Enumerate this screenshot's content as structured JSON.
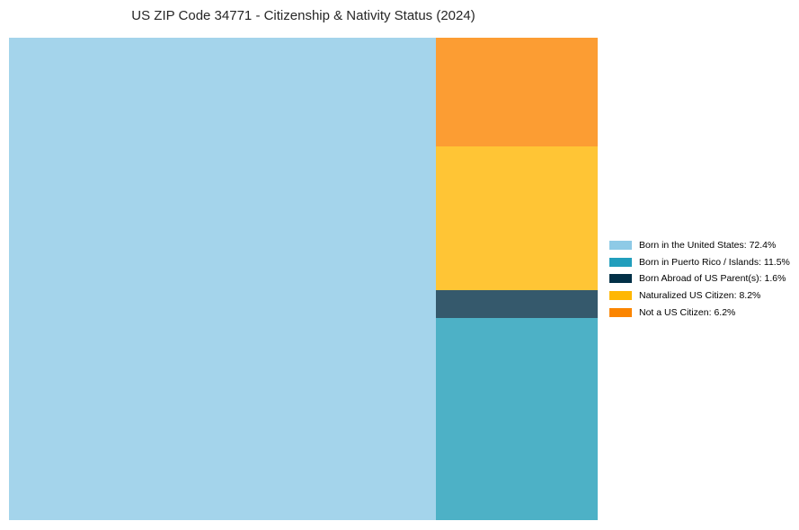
{
  "page": {
    "background": "#ffffff"
  },
  "chart_data": {
    "type": "treemap",
    "title": "US ZIP Code 34771 - Citizenship & Nativity Status (2024)",
    "items": [
      {
        "label": "Born in the United States",
        "value": 72.4,
        "color": "#8ecae6",
        "fill": "#a4d4eb"
      },
      {
        "label": "Born in Puerto Rico / Islands",
        "value": 11.5,
        "color": "#219ebc",
        "fill": "#4db1c6"
      },
      {
        "label": "Born Abroad of US Parent(s)",
        "value": 1.6,
        "color": "#023047",
        "fill": "#35596c"
      },
      {
        "label": "Naturalized US Citizen",
        "value": 8.2,
        "color": "#ffb703",
        "fill": "#ffc535"
      },
      {
        "label": "Not a US Citizen",
        "value": 6.2,
        "color": "#fb8500",
        "fill": "#fc9d33"
      }
    ],
    "layout": {
      "main_index": 0,
      "right_column_indices": [
        4,
        3,
        2,
        1
      ]
    },
    "legend_position": "right-center",
    "grid": false
  },
  "legend": {
    "items": [
      {
        "text": "Born in the United States: 72.4%",
        "color": "#8ecae6"
      },
      {
        "text": "Born in Puerto Rico / Islands: 11.5%",
        "color": "#219ebc"
      },
      {
        "text": "Born Abroad of US Parent(s): 1.6%",
        "color": "#023047"
      },
      {
        "text": "Naturalized US Citizen: 8.2%",
        "color": "#ffb703"
      },
      {
        "text": "Not a US Citizen: 6.2%",
        "color": "#fb8500"
      }
    ]
  }
}
